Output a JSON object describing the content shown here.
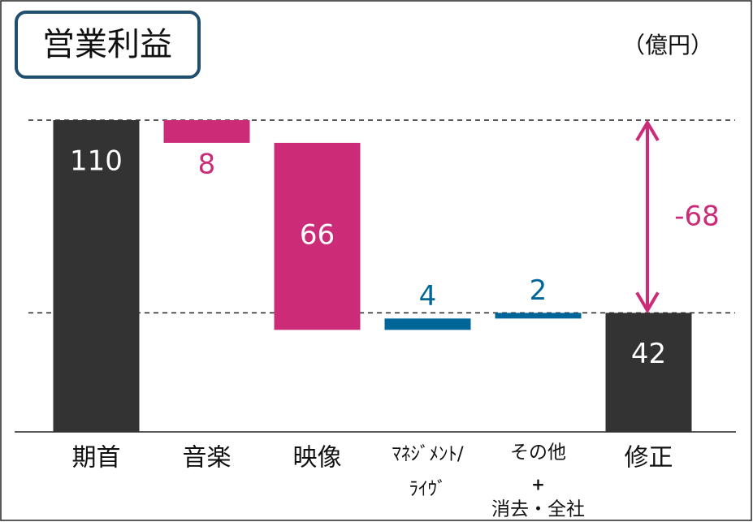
{
  "chart_data": {
    "type": "waterfall",
    "title": "営業利益",
    "unit": "（億円）",
    "categories": [
      "期首",
      "音楽",
      "映像",
      [
        "ﾏﾈｼﾞﾒﾝﾄ/",
        "ﾗｲｳﾞ"
      ],
      [
        "その他",
        "+",
        "消去・全社"
      ],
      "修正"
    ],
    "values": [
      110,
      -8,
      -66,
      4,
      2,
      42
    ],
    "value_labels": [
      "110",
      "8",
      "66",
      "4",
      "2",
      "42"
    ],
    "measure": [
      "absolute",
      "relative",
      "relative",
      "relative",
      "relative",
      "total"
    ],
    "colors": [
      "#333333",
      "#cc2b78",
      "#cc2b78",
      "#006699",
      "#006699",
      "#333333"
    ],
    "ylim": [
      0,
      110
    ],
    "difference": -68,
    "difference_color": "#cc2b78"
  }
}
